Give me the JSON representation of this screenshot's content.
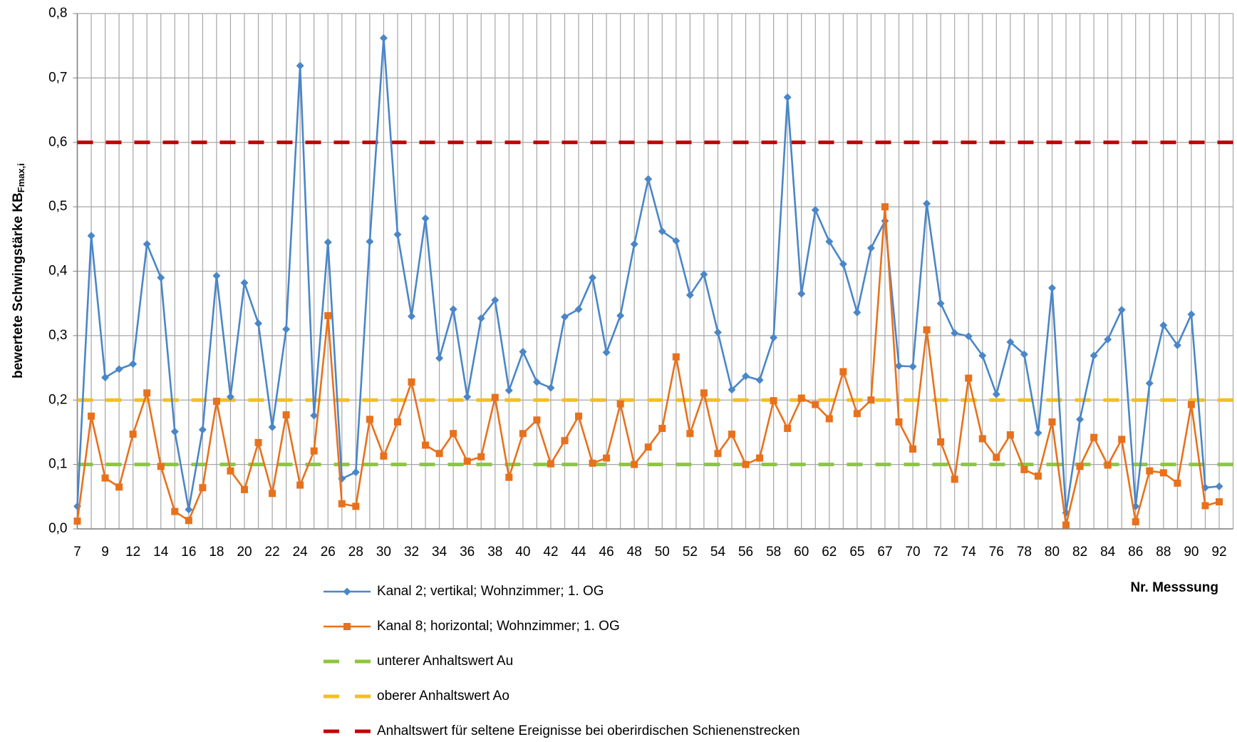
{
  "chart_data": {
    "type": "line",
    "ylabel": "bewertete Schwingstärke KB",
    "ylabel_sub": "Fmax,i",
    "xlabel": "Nr. Messsung",
    "categories": [
      7,
      null,
      9,
      null,
      12,
      null,
      14,
      null,
      16,
      null,
      18,
      null,
      20,
      null,
      22,
      null,
      24,
      null,
      26,
      null,
      28,
      null,
      30,
      null,
      32,
      null,
      34,
      null,
      36,
      null,
      38,
      null,
      40,
      null,
      42,
      null,
      44,
      null,
      46,
      null,
      48,
      null,
      50,
      null,
      52,
      null,
      54,
      null,
      56,
      null,
      58,
      null,
      60,
      null,
      62,
      null,
      65,
      null,
      67,
      null,
      70,
      null,
      72,
      null,
      74,
      null,
      76,
      null,
      78,
      null,
      80,
      null,
      82,
      null,
      84,
      null,
      86,
      null,
      88,
      null,
      90,
      null,
      92
    ],
    "series": [
      {
        "name": "Kanal 2; vertikal; Wohnzimmer; 1. OG",
        "color": "#4a86c8",
        "marker": "diamond",
        "values": [
          0.035,
          0.455,
          0.235,
          0.248,
          0.256,
          0.442,
          0.39,
          0.151,
          0.03,
          0.154,
          0.393,
          0.205,
          0.382,
          0.319,
          0.158,
          0.31,
          0.719,
          0.176,
          0.445,
          0.078,
          0.088,
          0.446,
          0.762,
          0.457,
          0.33,
          0.482,
          0.265,
          0.341,
          0.205,
          0.327,
          0.355,
          0.215,
          0.275,
          0.228,
          0.219,
          0.329,
          0.341,
          0.39,
          0.274,
          0.331,
          0.442,
          0.543,
          0.462,
          0.447,
          0.363,
          0.395,
          0.305,
          0.216,
          0.237,
          0.231,
          0.297,
          0.67,
          0.365,
          0.495,
          0.446,
          0.411,
          0.336,
          0.436,
          0.478,
          0.253,
          0.252,
          0.505,
          0.35,
          0.304,
          0.299,
          0.269,
          0.209,
          0.29,
          0.271,
          0.149,
          0.374,
          0.025,
          0.17,
          0.269,
          0.294,
          0.34,
          0.035,
          0.226,
          0.316,
          0.285,
          0.333,
          0.064,
          0.066
        ]
      },
      {
        "name": "Kanal 8; horizontal; Wohnzimmer; 1. OG",
        "color": "#e8711c",
        "marker": "square",
        "values": [
          0.012,
          0.175,
          0.079,
          0.065,
          0.147,
          0.211,
          0.097,
          0.027,
          0.013,
          0.064,
          0.198,
          0.09,
          0.061,
          0.134,
          0.055,
          0.177,
          0.068,
          0.121,
          0.331,
          0.039,
          0.035,
          0.17,
          0.113,
          0.166,
          0.228,
          0.13,
          0.117,
          0.148,
          0.105,
          0.112,
          0.204,
          0.08,
          0.148,
          0.169,
          0.101,
          0.137,
          0.175,
          0.102,
          0.11,
          0.194,
          0.1,
          0.127,
          0.156,
          0.267,
          0.148,
          0.211,
          0.117,
          0.147,
          0.1,
          0.11,
          0.199,
          0.156,
          0.203,
          0.193,
          0.171,
          0.244,
          0.179,
          0.2,
          0.5,
          0.166,
          0.124,
          0.309,
          0.135,
          0.077,
          0.234,
          0.14,
          0.111,
          0.146,
          0.092,
          0.082,
          0.166,
          0.006,
          0.097,
          0.142,
          0.099,
          0.139,
          0.011,
          0.09,
          0.087,
          0.071,
          0.193,
          0.036,
          0.042
        ]
      }
    ],
    "hlines": [
      {
        "name": "unterer Anhaltswert Au",
        "color": "#8cc63f",
        "value": 0.1
      },
      {
        "name": "oberer Anhaltswert Ao",
        "color": "#f2c01e",
        "value": 0.2
      },
      {
        "name": "Anhaltswert für seltene Ereignisse bei oberirdischen Schienenstrecken",
        "color": "#c00000",
        "value": 0.6
      }
    ],
    "ylim": [
      0,
      0.8
    ],
    "yticks": [
      {
        "value": 0,
        "label": "0,0"
      },
      {
        "value": 0.1,
        "label": "0,1"
      },
      {
        "value": 0.2,
        "label": "0,2"
      },
      {
        "value": 0.3,
        "label": "0,3"
      },
      {
        "value": 0.4,
        "label": "0,4"
      },
      {
        "value": 0.5,
        "label": "0,5"
      },
      {
        "value": 0.6,
        "label": "0,6"
      },
      {
        "value": 0.7,
        "label": "0,7"
      },
      {
        "value": 0.8,
        "label": "0,8"
      }
    ],
    "grid": true
  }
}
